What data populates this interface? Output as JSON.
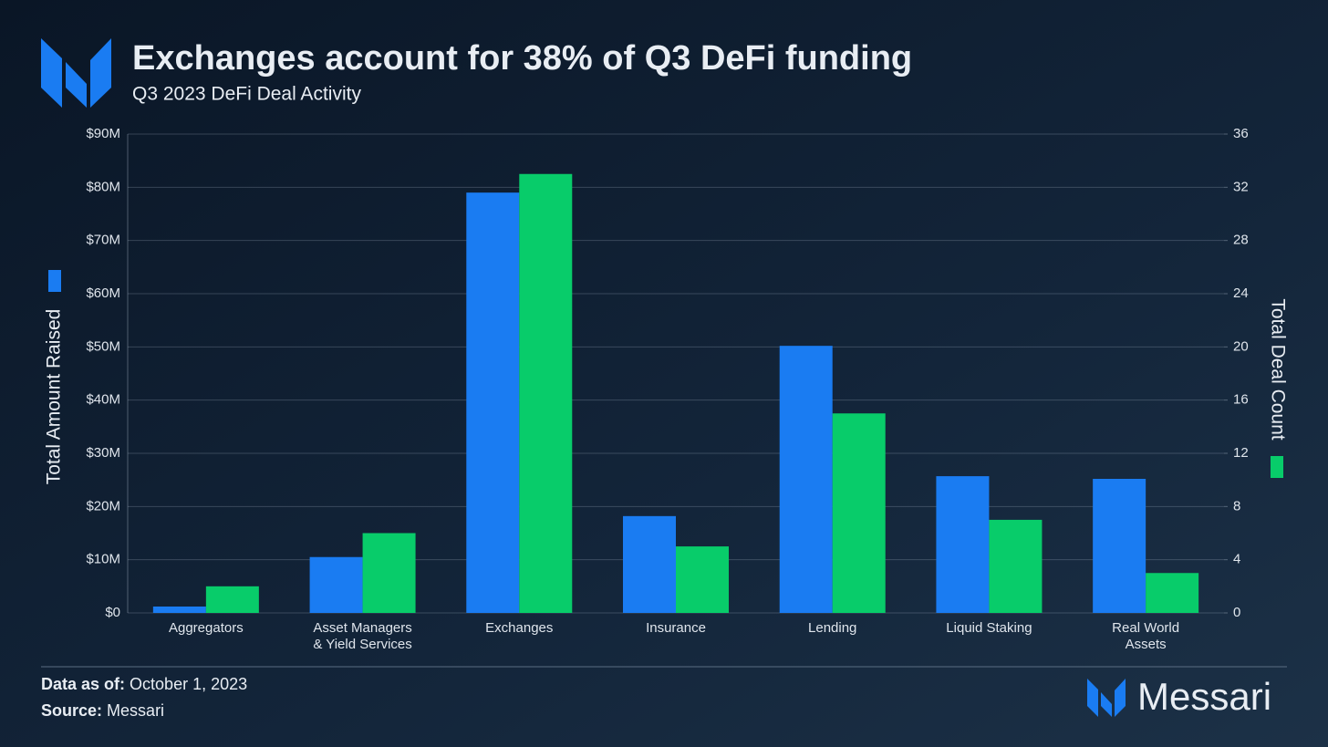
{
  "chart_data": {
    "type": "bar",
    "title": "Exchanges account for 38% of Q3 DeFi funding",
    "subtitle": "Q3 2023 DeFi Deal Activity",
    "y_label": "Total Amount Raised",
    "y2_label": "Total Deal Count",
    "categories": [
      [
        "Aggregators"
      ],
      [
        "Asset Managers",
        "& Yield Services"
      ],
      [
        "Exchanges"
      ],
      [
        "Insurance"
      ],
      [
        "Lending"
      ],
      [
        "Liquid Staking"
      ],
      [
        "Real World",
        "Assets"
      ]
    ],
    "series": [
      {
        "name": "Total Amount Raised",
        "color": "#1a7cf2",
        "values": [
          1.2,
          10.5,
          79.0,
          18.2,
          50.2,
          25.7,
          25.2
        ]
      },
      {
        "name": "Total Deal Count",
        "color": "#08cc6a",
        "axis": "y2",
        "values": [
          2,
          6,
          33,
          5,
          15,
          7,
          3
        ]
      }
    ],
    "ylim": [
      0,
      90
    ],
    "yticks": [
      {
        "value": 0,
        "label": "$0"
      },
      {
        "value": 10,
        "label": "$10M"
      },
      {
        "value": 20,
        "label": "$20M"
      },
      {
        "value": 30,
        "label": "$30M"
      },
      {
        "value": 40,
        "label": "$40M"
      },
      {
        "value": 50,
        "label": "$50M"
      },
      {
        "value": 60,
        "label": "$60M"
      },
      {
        "value": 70,
        "label": "$70M"
      },
      {
        "value": 80,
        "label": "$80M"
      },
      {
        "value": 90,
        "label": "$90M"
      }
    ],
    "y2lim": [
      0,
      36
    ],
    "y2ticks": [
      0,
      4,
      8,
      12,
      16,
      20,
      24,
      28,
      32,
      36
    ],
    "grid": true
  },
  "footer": {
    "date_label": "Data as of:",
    "date": "October 1, 2023",
    "source_label": "Source:",
    "source": "Messari"
  },
  "brand": "Messari"
}
